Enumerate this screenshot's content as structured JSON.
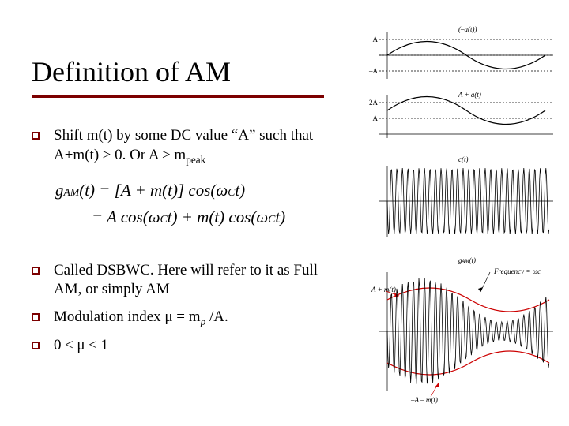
{
  "title": "Definition of AM",
  "bullets": {
    "b1": "Shift m(t) by some DC value “A” such that A+m(t) ≥ 0. Or A ≥ m",
    "b1_sub": "peak",
    "b2": "Called DSBWC. Here will refer to it as Full AM, or simply AM",
    "b3_pre": "Modulation index μ = m",
    "b3_sub": "p",
    "b3_post": " /A.",
    "b4": "0 ≤ μ ≤ 1"
  },
  "formula": {
    "line1_a": "g",
    "line1_b": "AM",
    "line1_c": "(t) = [A + m(t)] cos(ω",
    "line1_d": "C",
    "line1_e": "t)",
    "line2_a": "= A cos(ω",
    "line2_b": "C",
    "line2_c": "t) + m(t) cos(ω",
    "line2_d": "C",
    "line2_e": "t)"
  },
  "diagram": {
    "label_mt": "(–a(t))",
    "label_A": "A",
    "label_minusA": "–A",
    "label_shift": "A + a(t)",
    "label_2A": "2A",
    "label_ct": "c(t)",
    "label_gam": "gᴀᴍ(t)",
    "label_freq": "Frequency = ωc",
    "label_env_top": "A + m(t)",
    "label_env_bot": "–A – m(t)",
    "colors": {
      "axis": "#000000",
      "accent": "#cc0000",
      "signal": "#000000"
    }
  }
}
